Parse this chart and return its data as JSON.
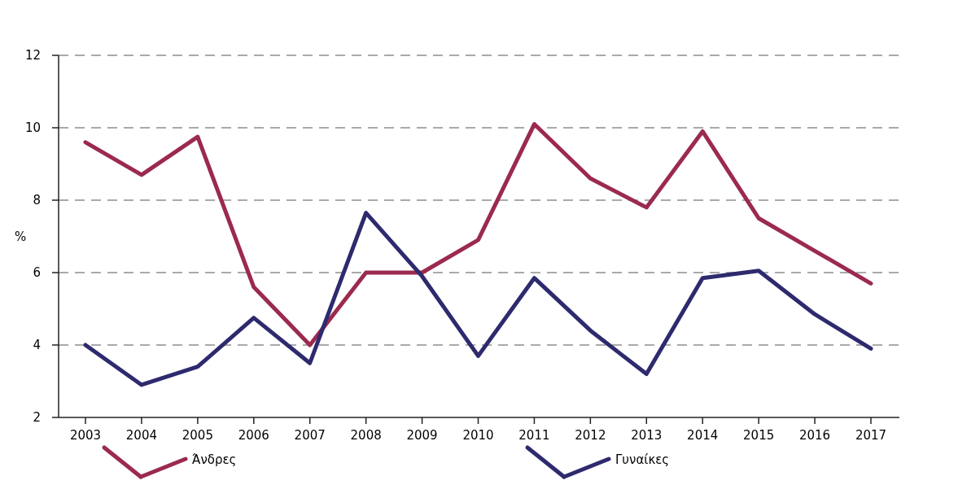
{
  "chart_data": {
    "type": "line",
    "ylabel": "%",
    "categories": [
      "2003",
      "2004",
      "2005",
      "2006",
      "2007",
      "2008",
      "2009",
      "2010",
      "2011",
      "2012",
      "2013",
      "2014",
      "2015",
      "2016",
      "2017"
    ],
    "series": [
      {
        "name": "Άνδρες",
        "color": "#9b2a4e",
        "values": [
          9.6,
          8.7,
          9.75,
          5.6,
          4.0,
          6.0,
          6.0,
          6.9,
          10.1,
          8.6,
          7.8,
          9.9,
          7.5,
          6.6,
          5.7
        ]
      },
      {
        "name": "Γυναίκες",
        "color": "#2e2a6e",
        "values": [
          4.0,
          2.9,
          3.4,
          4.75,
          3.5,
          7.65,
          5.9,
          3.7,
          5.85,
          4.4,
          3.2,
          5.85,
          6.05,
          4.85,
          3.9
        ]
      }
    ],
    "ylim": [
      2,
      12
    ],
    "yticks": [
      2,
      4,
      6,
      8,
      10,
      12
    ],
    "grid": "y",
    "legend": "bottom",
    "line_style": "solid",
    "marker": "none"
  }
}
